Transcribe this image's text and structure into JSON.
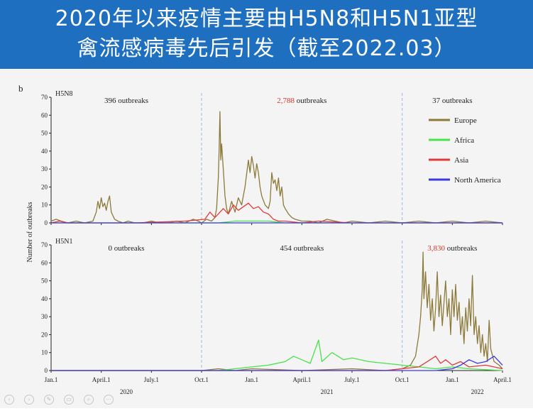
{
  "banner": {
    "line1": "2020年以来疫情主要由H5N8和H5N1亚型",
    "line2": "禽流感病毒先后引发（截至2022.03）"
  },
  "colors": {
    "banner": "#1f6fc0",
    "europe": "#8c7a3a",
    "africa": "#47e34a",
    "asia": "#e23a3a",
    "north_america": "#3a3ae0",
    "highlight_count": "#d9342c",
    "divider": "#9fb6d9"
  },
  "icons": [
    "prev-icon",
    "next-icon",
    "pen-icon",
    "page-icon",
    "zoom-icon",
    "more-icon"
  ],
  "chart_data": {
    "type": "line",
    "panel_letter": "b",
    "ylabel": "Number of outbreaks",
    "ylim": [
      0,
      70
    ],
    "yticks": [
      "0",
      "10",
      "20",
      "30",
      "40",
      "50",
      "60",
      "70"
    ],
    "x_ticks": [
      "Jan.1",
      "April.1",
      "July.1",
      "Oct.1",
      "Jan.1",
      "April.1",
      "July.1",
      "Oct.1",
      "Jan.1",
      "April.1"
    ],
    "x_tick_months": [
      0,
      3,
      6,
      9,
      12,
      15,
      18,
      21,
      24,
      27
    ],
    "years": [
      {
        "label": "2020",
        "month": 4.5
      },
      {
        "label": "2021",
        "month": 16.5
      },
      {
        "label": "2022",
        "month": 25.5
      }
    ],
    "xlim_months": [
      0,
      27
    ],
    "dividers_months": [
      9,
      21
    ],
    "legend": [
      "Europe",
      "Africa",
      "Asia",
      "North America"
    ],
    "legend_position": "top-right",
    "panels": [
      {
        "subtype": "H5N8",
        "periods": [
          {
            "count": "396",
            "suffix": "outbreaks",
            "highlight": false
          },
          {
            "count": "2,788",
            "suffix": "outbreaks",
            "highlight": true
          },
          {
            "count": "37",
            "suffix": "outbreaks",
            "highlight": false
          }
        ],
        "series": [
          {
            "name": "Europe",
            "points": [
              [
                0,
                1
              ],
              [
                0.3,
                2
              ],
              [
                0.6,
                1
              ],
              [
                1,
                0
              ],
              [
                1.5,
                1
              ],
              [
                2,
                0
              ],
              [
                2.5,
                1
              ],
              [
                2.7,
                6
              ],
              [
                2.8,
                12
              ],
              [
                2.9,
                8
              ],
              [
                3.0,
                14
              ],
              [
                3.1,
                9
              ],
              [
                3.2,
                11
              ],
              [
                3.3,
                7
              ],
              [
                3.4,
                12
              ],
              [
                3.5,
                15
              ],
              [
                3.6,
                6
              ],
              [
                3.8,
                2
              ],
              [
                4,
                1
              ],
              [
                4.3,
                0
              ],
              [
                4.6,
                1
              ],
              [
                5,
                0
              ],
              [
                5.5,
                0
              ],
              [
                6,
                1
              ],
              [
                6.5,
                0
              ],
              [
                7,
                0
              ],
              [
                7.5,
                1
              ],
              [
                8,
                0
              ],
              [
                8.5,
                2
              ],
              [
                8.8,
                1
              ],
              [
                9,
                0
              ],
              [
                9.3,
                2
              ],
              [
                9.6,
                1
              ],
              [
                9.8,
                3
              ],
              [
                9.9,
                8
              ],
              [
                10.0,
                25
              ],
              [
                10.05,
                40
              ],
              [
                10.1,
                62
              ],
              [
                10.15,
                35
              ],
              [
                10.2,
                44
              ],
              [
                10.3,
                30
              ],
              [
                10.4,
                15
              ],
              [
                10.5,
                8
              ],
              [
                10.6,
                5
              ],
              [
                10.8,
                12
              ],
              [
                11,
                6
              ],
              [
                11.2,
                14
              ],
              [
                11.4,
                10
              ],
              [
                11.6,
                20
              ],
              [
                11.8,
                35
              ],
              [
                11.9,
                28
              ],
              [
                12.0,
                37
              ],
              [
                12.1,
                32
              ],
              [
                12.2,
                25
              ],
              [
                12.3,
                33
              ],
              [
                12.4,
                28
              ],
              [
                12.5,
                20
              ],
              [
                12.6,
                15
              ],
              [
                12.8,
                10
              ],
              [
                13,
                8
              ],
              [
                13.1,
                12
              ],
              [
                13.2,
                28
              ],
              [
                13.3,
                22
              ],
              [
                13.4,
                24
              ],
              [
                13.5,
                18
              ],
              [
                13.6,
                25
              ],
              [
                13.7,
                15
              ],
              [
                13.8,
                20
              ],
              [
                13.9,
                10
              ],
              [
                14,
                8
              ],
              [
                14.2,
                5
              ],
              [
                14.4,
                3
              ],
              [
                14.6,
                2
              ],
              [
                15,
                1
              ],
              [
                15.5,
                1
              ],
              [
                16,
                0
              ],
              [
                16.5,
                2
              ],
              [
                17,
                1
              ],
              [
                17.5,
                0
              ],
              [
                18,
                1
              ],
              [
                19,
                0
              ],
              [
                20,
                1
              ],
              [
                21,
                0
              ],
              [
                22,
                1
              ],
              [
                23,
                0
              ],
              [
                24,
                1
              ],
              [
                25,
                0
              ],
              [
                26,
                1
              ],
              [
                27,
                0
              ]
            ]
          },
          {
            "name": "Africa",
            "points": [
              [
                0,
                0
              ],
              [
                10,
                0
              ],
              [
                11,
                1
              ],
              [
                12,
                1
              ],
              [
                13,
                1
              ],
              [
                14,
                0
              ],
              [
                27,
                0
              ]
            ]
          },
          {
            "name": "Asia",
            "points": [
              [
                0,
                0
              ],
              [
                0.5,
                1
              ],
              [
                1,
                0
              ],
              [
                5,
                0
              ],
              [
                8,
                1
              ],
              [
                9.2,
                2
              ],
              [
                9.5,
                6
              ],
              [
                9.8,
                3
              ],
              [
                10,
                5
              ],
              [
                10.3,
                8
              ],
              [
                10.6,
                5
              ],
              [
                10.9,
                10
              ],
              [
                11.2,
                7
              ],
              [
                11.5,
                9
              ],
              [
                11.8,
                11
              ],
              [
                12.1,
                8
              ],
              [
                12.4,
                9
              ],
              [
                12.7,
                6
              ],
              [
                13,
                5
              ],
              [
                13.3,
                2
              ],
              [
                13.6,
                1
              ],
              [
                14,
                1
              ],
              [
                15,
                0
              ],
              [
                16,
                1
              ],
              [
                18,
                0
              ],
              [
                27,
                0
              ]
            ]
          },
          {
            "name": "North America",
            "points": [
              [
                0,
                0
              ],
              [
                27,
                0
              ]
            ]
          }
        ]
      },
      {
        "subtype": "H5N1",
        "periods": [
          {
            "count": "0",
            "suffix": "outbreaks",
            "highlight": false
          },
          {
            "count": "454",
            "suffix": "outbreaks",
            "highlight": false
          },
          {
            "count": "3,830",
            "suffix": "outbreaks",
            "highlight": true
          }
        ],
        "series": [
          {
            "name": "Europe",
            "points": [
              [
                0,
                0
              ],
              [
                9,
                0
              ],
              [
                10,
                1
              ],
              [
                11,
                0
              ],
              [
                12,
                1
              ],
              [
                15,
                0
              ],
              [
                18,
                1
              ],
              [
                20,
                0
              ],
              [
                21,
                1
              ],
              [
                21.5,
                3
              ],
              [
                21.8,
                8
              ],
              [
                22.0,
                20
              ],
              [
                22.1,
                30
              ],
              [
                22.2,
                45
              ],
              [
                22.25,
                66
              ],
              [
                22.3,
                40
              ],
              [
                22.4,
                55
              ],
              [
                22.5,
                35
              ],
              [
                22.6,
                48
              ],
              [
                22.7,
                28
              ],
              [
                22.8,
                40
              ],
              [
                22.9,
                22
              ],
              [
                23.0,
                35
              ],
              [
                23.1,
                55
              ],
              [
                23.2,
                30
              ],
              [
                23.3,
                42
              ],
              [
                23.4,
                25
              ],
              [
                23.5,
                38
              ],
              [
                23.6,
                50
              ],
              [
                23.7,
                30
              ],
              [
                23.8,
                40
              ],
              [
                23.9,
                20
              ],
              [
                24.0,
                45
              ],
              [
                24.1,
                30
              ],
              [
                24.2,
                48
              ],
              [
                24.3,
                28
              ],
              [
                24.4,
                38
              ],
              [
                24.5,
                20
              ],
              [
                24.6,
                30
              ],
              [
                24.7,
                15
              ],
              [
                24.8,
                35
              ],
              [
                24.9,
                22
              ],
              [
                25.0,
                40
              ],
              [
                25.1,
                25
              ],
              [
                25.2,
                53
              ],
              [
                25.3,
                20
              ],
              [
                25.4,
                30
              ],
              [
                25.5,
                15
              ],
              [
                25.6,
                25
              ],
              [
                25.7,
                10
              ],
              [
                25.8,
                20
              ],
              [
                25.9,
                8
              ],
              [
                26.0,
                15
              ],
              [
                26.1,
                5
              ],
              [
                26.2,
                28
              ],
              [
                26.3,
                12
              ],
              [
                26.5,
                5
              ],
              [
                26.8,
                3
              ],
              [
                27,
                1
              ]
            ]
          },
          {
            "name": "Africa",
            "points": [
              [
                0,
                0
              ],
              [
                10,
                0
              ],
              [
                11,
                1
              ],
              [
                12,
                2
              ],
              [
                13,
                3
              ],
              [
                14,
                5
              ],
              [
                14.5,
                8
              ],
              [
                15,
                6
              ],
              [
                15.5,
                4
              ],
              [
                16,
                17
              ],
              [
                16.2,
                5
              ],
              [
                16.8,
                10
              ],
              [
                17.5,
                6
              ],
              [
                18,
                7
              ],
              [
                19,
                5
              ],
              [
                20,
                4
              ],
              [
                21,
                3
              ],
              [
                22,
                2
              ],
              [
                23,
                1
              ],
              [
                24,
                2
              ],
              [
                25,
                1
              ],
              [
                27,
                0
              ]
            ]
          },
          {
            "name": "Asia",
            "points": [
              [
                0,
                0
              ],
              [
                20,
                0
              ],
              [
                21,
                1
              ],
              [
                22,
                2
              ],
              [
                22.5,
                5
              ],
              [
                23,
                8
              ],
              [
                23.3,
                4
              ],
              [
                23.6,
                6
              ],
              [
                24,
                3
              ],
              [
                24.5,
                5
              ],
              [
                25,
                2
              ],
              [
                26,
                3
              ],
              [
                27,
                1
              ]
            ]
          },
          {
            "name": "North America",
            "points": [
              [
                0,
                0
              ],
              [
                23,
                0
              ],
              [
                24,
                1
              ],
              [
                24.5,
                3
              ],
              [
                25,
                6
              ],
              [
                25.5,
                4
              ],
              [
                26,
                5
              ],
              [
                26.5,
                8
              ],
              [
                27,
                3
              ]
            ]
          }
        ]
      }
    ]
  }
}
